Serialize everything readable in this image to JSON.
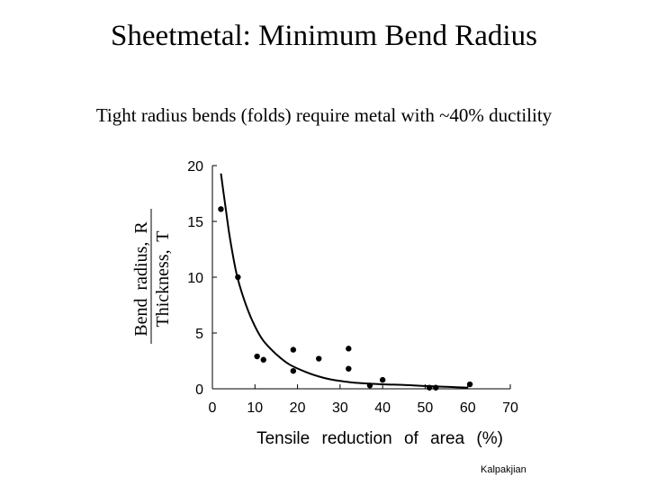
{
  "slide": {
    "title": "Sheetmetal: Minimum Bend Radius",
    "subtitle": "Tight radius bends (folds) require metal with ~40% ductility",
    "credit": "Kalpakjian"
  },
  "chart_data": {
    "type": "scatter",
    "xlabel": "Tensile reduction of area (%)",
    "ylabel_left": "Bend radius, R",
    "ylabel_right": "Thickness, T",
    "xlim": [
      0,
      70
    ],
    "ylim": [
      0,
      20
    ],
    "x_ticks": [
      0,
      10,
      20,
      30,
      40,
      50,
      60,
      70
    ],
    "y_ticks": [
      0,
      5,
      10,
      15,
      20
    ],
    "points": [
      {
        "x": 2,
        "y": 16.1
      },
      {
        "x": 6,
        "y": 10
      },
      {
        "x": 10.5,
        "y": 2.9
      },
      {
        "x": 12,
        "y": 2.6
      },
      {
        "x": 19,
        "y": 3.5
      },
      {
        "x": 19,
        "y": 1.6
      },
      {
        "x": 25,
        "y": 2.7
      },
      {
        "x": 32,
        "y": 3.6
      },
      {
        "x": 32,
        "y": 1.8
      },
      {
        "x": 37,
        "y": 0.3
      },
      {
        "x": 40,
        "y": 0.8
      },
      {
        "x": 51,
        "y": 0.1
      },
      {
        "x": 52.5,
        "y": 0.1
      },
      {
        "x": 60.5,
        "y": 0.4
      }
    ],
    "curve": [
      {
        "x": 2,
        "y": 19.3
      },
      {
        "x": 3,
        "y": 16.5
      },
      {
        "x": 4,
        "y": 13.8
      },
      {
        "x": 5,
        "y": 11.6
      },
      {
        "x": 6,
        "y": 9.8
      },
      {
        "x": 8,
        "y": 7.4
      },
      {
        "x": 10,
        "y": 5.6
      },
      {
        "x": 12,
        "y": 4.3
      },
      {
        "x": 15,
        "y": 3.1
      },
      {
        "x": 18,
        "y": 2.2
      },
      {
        "x": 22,
        "y": 1.5
      },
      {
        "x": 26,
        "y": 1.0
      },
      {
        "x": 30,
        "y": 0.7
      },
      {
        "x": 35,
        "y": 0.5
      },
      {
        "x": 40,
        "y": 0.4
      },
      {
        "x": 45,
        "y": 0.35
      },
      {
        "x": 50,
        "y": 0.25
      },
      {
        "x": 55,
        "y": 0.18
      },
      {
        "x": 60,
        "y": 0.1
      }
    ]
  }
}
